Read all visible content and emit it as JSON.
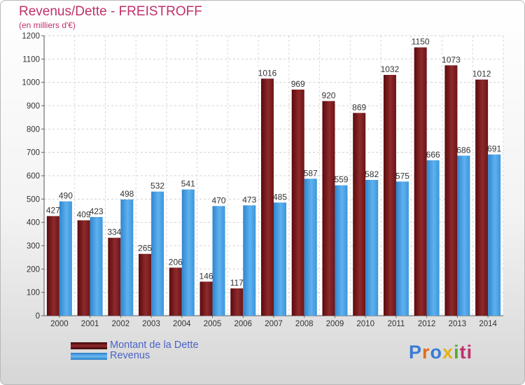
{
  "header": {
    "title": "Revenus/Dette - FREISTROFF",
    "subtitle": "(en milliers d'€)"
  },
  "logo": {
    "letters": [
      "P",
      "r",
      "o",
      "x",
      "i",
      "ti"
    ]
  },
  "colors": {
    "dette": "#7a1a1c",
    "revenus": "#3f9be0",
    "title": "#c0306b",
    "legend_text": "#4a63c8"
  },
  "chart_data": {
    "type": "bar",
    "categories": [
      "2000",
      "2001",
      "2002",
      "2003",
      "2004",
      "2005",
      "2006",
      "2007",
      "2008",
      "2009",
      "2010",
      "2011",
      "2012",
      "2013",
      "2014"
    ],
    "series": [
      {
        "name": "Montant de la Dette",
        "values": [
          427,
          409,
          334,
          265,
          206,
          146,
          117,
          1016,
          969,
          920,
          869,
          1032,
          1150,
          1073,
          1012
        ]
      },
      {
        "name": "Revenus",
        "values": [
          490,
          423,
          498,
          532,
          541,
          470,
          473,
          485,
          587,
          559,
          582,
          575,
          666,
          686,
          691
        ]
      }
    ],
    "title": "Revenus/Dette - FREISTROFF",
    "subtitle": "(en milliers d'€)",
    "xlabel": "",
    "ylabel": "",
    "ylim": [
      0,
      1200
    ],
    "yticks": [
      0,
      100,
      200,
      300,
      400,
      500,
      600,
      700,
      800,
      900,
      1000,
      1100,
      1200
    ],
    "grid": true,
    "legend_position": "bottom-left"
  }
}
